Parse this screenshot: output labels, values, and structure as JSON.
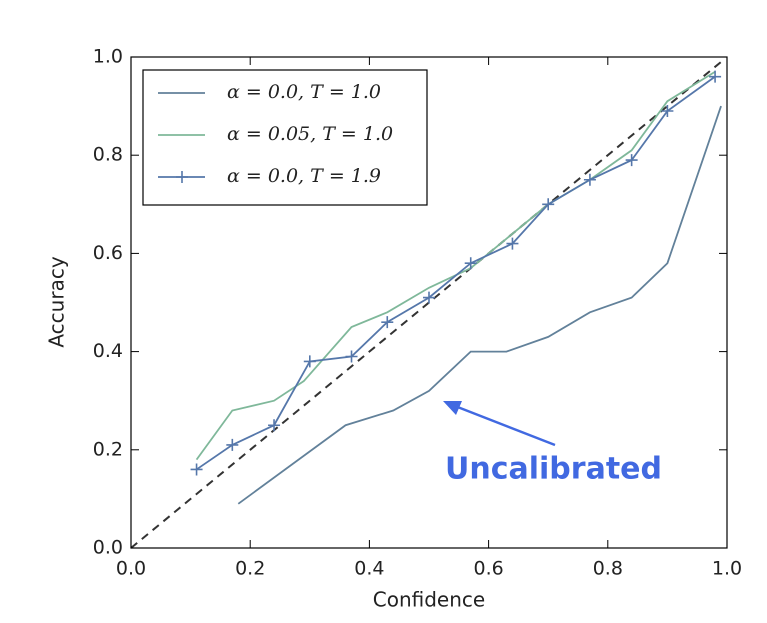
{
  "chart_data": {
    "type": "line",
    "xlabel": "Confidence",
    "ylabel": "Accuracy",
    "xlim": [
      0,
      1
    ],
    "ylim": [
      0,
      1
    ],
    "xticks": [
      {
        "value": 0,
        "label": "0.0"
      },
      0.2,
      0.4,
      0.6,
      0.8,
      {
        "value": 1,
        "label": "1.0"
      }
    ],
    "yticks": [
      {
        "value": 0,
        "label": "0.0"
      },
      0.2,
      0.4,
      0.6,
      0.8,
      {
        "value": 1,
        "label": "1.0"
      }
    ],
    "legend": "upper left",
    "series": [
      {
        "name": "α = 0.0, T = 1.0",
        "color": "#62819a",
        "marker": "none",
        "x": [
          0.18,
          0.36,
          0.44,
          0.5,
          0.57,
          0.63,
          0.7,
          0.77,
          0.84,
          0.9,
          0.99
        ],
        "values": [
          0.09,
          0.25,
          0.28,
          0.32,
          0.4,
          0.4,
          0.43,
          0.48,
          0.51,
          0.58,
          0.9
        ]
      },
      {
        "name": "α = 0.05, T = 1.0",
        "color": "#7fb89a",
        "marker": "none",
        "x": [
          0.11,
          0.17,
          0.24,
          0.29,
          0.37,
          0.43,
          0.5,
          0.57,
          0.63,
          0.7,
          0.77,
          0.84,
          0.9,
          0.98
        ],
        "values": [
          0.18,
          0.28,
          0.3,
          0.34,
          0.45,
          0.48,
          0.53,
          0.57,
          0.63,
          0.7,
          0.75,
          0.81,
          0.91,
          0.97
        ]
      },
      {
        "name": "α = 0.0, T = 1.9",
        "color": "#5577aa",
        "marker": "+",
        "x": [
          0.11,
          0.17,
          0.24,
          0.3,
          0.37,
          0.43,
          0.5,
          0.57,
          0.64,
          0.7,
          0.77,
          0.84,
          0.9,
          0.98
        ],
        "values": [
          0.16,
          0.21,
          0.25,
          0.38,
          0.39,
          0.46,
          0.51,
          0.58,
          0.62,
          0.7,
          0.75,
          0.79,
          0.89,
          0.96
        ]
      }
    ],
    "reference_line": {
      "x": [
        0,
        0.99
      ],
      "values": [
        0,
        0.99
      ],
      "color": "#333333",
      "style": "dashed"
    },
    "annotation": {
      "text": "Uncalibrated",
      "color": "#4169e1"
    }
  }
}
